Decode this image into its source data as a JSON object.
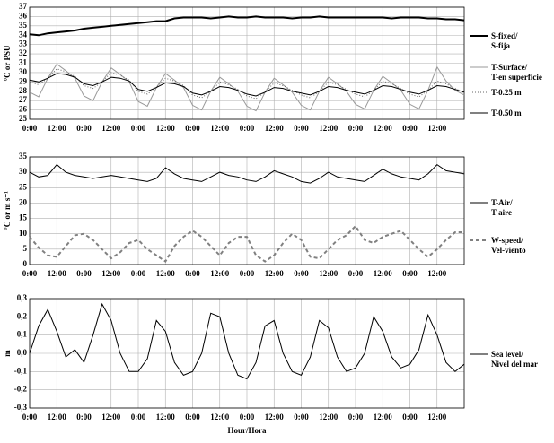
{
  "chart_data": [
    {
      "type": "line",
      "y_label": "°C or PSU",
      "grid": true,
      "x": [
        0,
        4,
        8,
        12,
        16,
        20,
        24,
        28,
        32,
        36,
        40,
        44,
        48,
        52,
        56,
        60,
        64,
        68,
        72,
        76,
        80,
        84,
        88,
        92,
        96,
        100,
        104,
        108,
        112,
        116,
        120,
        124,
        128,
        132,
        136,
        140,
        144,
        148,
        152,
        156,
        160,
        164,
        168,
        172,
        176,
        180,
        184,
        188,
        192
      ],
      "xlim": [
        0,
        192
      ],
      "xticks": [
        {
          "value": 0,
          "label": "0:00"
        },
        {
          "value": 12,
          "label": "12:00"
        },
        {
          "value": 24,
          "label": "0:00"
        },
        {
          "value": 36,
          "label": "12:00"
        },
        {
          "value": 48,
          "label": "0:00"
        },
        {
          "value": 60,
          "label": "12:00"
        },
        {
          "value": 72,
          "label": "0:00"
        },
        {
          "value": 84,
          "label": "12:00"
        },
        {
          "value": 96,
          "label": "0:00"
        },
        {
          "value": 108,
          "label": "12:00"
        },
        {
          "value": 120,
          "label": "0:00"
        },
        {
          "value": 132,
          "label": "12:00"
        },
        {
          "value": 144,
          "label": "0:00"
        },
        {
          "value": 156,
          "label": "12:00"
        },
        {
          "value": 168,
          "label": "0:00"
        },
        {
          "value": 180,
          "label": "12:00"
        }
      ],
      "ylim": [
        25,
        37
      ],
      "yticks": [
        25,
        26,
        27,
        28,
        29,
        30,
        31,
        32,
        33,
        34,
        35,
        36,
        37
      ],
      "series": [
        {
          "name": "S-fixed/\nS-fija",
          "color": "#000000",
          "width": 2,
          "style": "solid",
          "values": [
            34.1,
            34.0,
            34.2,
            34.3,
            34.4,
            34.5,
            34.7,
            34.8,
            34.9,
            35.0,
            35.1,
            35.2,
            35.3,
            35.4,
            35.5,
            35.5,
            35.8,
            35.9,
            35.9,
            35.9,
            35.8,
            35.9,
            36.0,
            35.9,
            35.9,
            36.0,
            35.9,
            35.9,
            35.9,
            35.8,
            35.9,
            35.9,
            36.0,
            35.9,
            35.9,
            35.9,
            35.9,
            35.9,
            35.9,
            35.9,
            35.8,
            35.9,
            35.9,
            35.9,
            35.8,
            35.8,
            35.7,
            35.7,
            35.6
          ]
        },
        {
          "name": "T-Surface/\nT-en superficie",
          "color": "#999999",
          "width": 1,
          "style": "solid",
          "values": [
            27.9,
            27.4,
            29.4,
            30.9,
            30.2,
            29.4,
            27.5,
            27.0,
            29.0,
            30.5,
            29.8,
            29.0,
            26.9,
            26.4,
            28.4,
            29.9,
            29.2,
            28.4,
            26.5,
            26.0,
            28.0,
            29.5,
            28.8,
            28.0,
            26.4,
            25.9,
            27.9,
            29.4,
            28.7,
            27.9,
            26.5,
            26.0,
            28.0,
            29.5,
            28.8,
            28.0,
            26.6,
            26.1,
            28.1,
            29.6,
            28.9,
            28.1,
            26.6,
            26.1,
            28.1,
            30.6,
            29.1,
            28.1,
            27.6
          ]
        },
        {
          "name": "T-0.25 m",
          "color": "#666666",
          "width": 1,
          "style": "dotted",
          "values": [
            29.0,
            28.7,
            29.4,
            30.4,
            30.1,
            29.6,
            28.6,
            28.3,
            29.0,
            30.0,
            29.7,
            29.2,
            28.0,
            27.7,
            28.4,
            29.4,
            29.1,
            28.6,
            27.6,
            27.3,
            28.0,
            29.0,
            28.7,
            28.2,
            27.5,
            27.2,
            27.9,
            28.9,
            28.6,
            28.1,
            27.6,
            27.3,
            28.0,
            29.0,
            28.7,
            28.2,
            27.7,
            27.4,
            28.1,
            29.1,
            28.8,
            28.3,
            27.7,
            27.4,
            28.1,
            29.1,
            28.8,
            28.3,
            27.8
          ]
        },
        {
          "name": "T-0.50 m",
          "color": "#000000",
          "width": 1,
          "style": "solid",
          "values": [
            29.2,
            29.0,
            29.4,
            29.9,
            29.8,
            29.5,
            28.8,
            28.6,
            29.0,
            29.5,
            29.4,
            29.1,
            28.2,
            28.0,
            28.4,
            28.9,
            28.8,
            28.5,
            27.8,
            27.6,
            28.0,
            28.5,
            28.4,
            28.1,
            27.7,
            27.5,
            27.9,
            28.4,
            28.3,
            28.0,
            27.8,
            27.6,
            28.0,
            28.5,
            28.4,
            28.1,
            27.9,
            27.7,
            28.1,
            28.6,
            28.5,
            28.2,
            27.9,
            27.7,
            28.1,
            28.6,
            28.5,
            28.2,
            27.9
          ]
        }
      ]
    },
    {
      "type": "line",
      "y_label": "°C or m s⁻¹",
      "grid": true,
      "x": [
        0,
        4,
        8,
        12,
        16,
        20,
        24,
        28,
        32,
        36,
        40,
        44,
        48,
        52,
        56,
        60,
        64,
        68,
        72,
        76,
        80,
        84,
        88,
        92,
        96,
        100,
        104,
        108,
        112,
        116,
        120,
        124,
        128,
        132,
        136,
        140,
        144,
        148,
        152,
        156,
        160,
        164,
        168,
        172,
        176,
        180,
        184,
        188,
        192
      ],
      "xlim": [
        0,
        192
      ],
      "xticks": [
        {
          "value": 0,
          "label": "0:00"
        },
        {
          "value": 12,
          "label": "12:00"
        },
        {
          "value": 24,
          "label": "0:00"
        },
        {
          "value": 36,
          "label": "12:00"
        },
        {
          "value": 48,
          "label": "0:00"
        },
        {
          "value": 60,
          "label": "12:00"
        },
        {
          "value": 72,
          "label": "0:00"
        },
        {
          "value": 84,
          "label": "12:00"
        },
        {
          "value": 96,
          "label": "0:00"
        },
        {
          "value": 108,
          "label": "12:00"
        },
        {
          "value": 120,
          "label": "0:00"
        },
        {
          "value": 132,
          "label": "12:00"
        },
        {
          "value": 144,
          "label": "0:00"
        },
        {
          "value": 156,
          "label": "12:00"
        },
        {
          "value": 168,
          "label": "0:00"
        },
        {
          "value": 180,
          "label": "12:00"
        }
      ],
      "ylim": [
        0,
        35
      ],
      "yticks": [
        0,
        5,
        10,
        15,
        20,
        25,
        30,
        35
      ],
      "series": [
        {
          "name": "T-Air/\nT-aire",
          "color": "#000000",
          "width": 1,
          "style": "solid",
          "values": [
            30.0,
            28.5,
            29.0,
            32.5,
            30.0,
            29.0,
            28.5,
            28.0,
            28.5,
            29.0,
            28.5,
            28.0,
            27.5,
            27.0,
            28.0,
            31.5,
            29.5,
            28.0,
            27.5,
            27.0,
            28.5,
            30.0,
            29.0,
            28.5,
            27.5,
            27.0,
            28.5,
            30.5,
            29.5,
            28.5,
            27.0,
            26.5,
            28.0,
            30.0,
            28.5,
            28.0,
            27.5,
            27.0,
            29.0,
            31.0,
            29.5,
            28.5,
            28.0,
            27.5,
            29.5,
            32.5,
            30.5,
            30.0,
            29.5
          ]
        },
        {
          "name": "W-speed/\nVel-viento",
          "color": "#808080",
          "width": 2,
          "style": "dashed",
          "values": [
            9.0,
            5.5,
            3.0,
            2.5,
            6.0,
            9.5,
            10.0,
            8.0,
            5.0,
            2.0,
            4.0,
            7.0,
            8.0,
            5.0,
            3.0,
            1.0,
            6.0,
            9.0,
            11.0,
            9.0,
            6.0,
            3.0,
            7.0,
            9.0,
            9.0,
            3.0,
            1.0,
            3.0,
            7.0,
            10.0,
            8.0,
            2.5,
            2.0,
            5.0,
            8.0,
            9.5,
            12.5,
            8.0,
            7.0,
            9.0,
            10.0,
            11.0,
            8.0,
            5.0,
            2.5,
            5.0,
            8.0,
            10.5,
            10.5
          ]
        }
      ]
    },
    {
      "type": "line",
      "y_label": "m",
      "x_label": "Hour/Hora",
      "grid": true,
      "x": [
        0,
        4,
        8,
        12,
        16,
        20,
        24,
        28,
        32,
        36,
        40,
        44,
        48,
        52,
        56,
        60,
        64,
        68,
        72,
        76,
        80,
        84,
        88,
        92,
        96,
        100,
        104,
        108,
        112,
        116,
        120,
        124,
        128,
        132,
        136,
        140,
        144,
        148,
        152,
        156,
        160,
        164,
        168,
        172,
        176,
        180,
        184,
        188,
        192
      ],
      "xlim": [
        0,
        192
      ],
      "xticks": [
        {
          "value": 0,
          "label": "0:00"
        },
        {
          "value": 12,
          "label": "12:00"
        },
        {
          "value": 24,
          "label": "0:00"
        },
        {
          "value": 36,
          "label": "12:00"
        },
        {
          "value": 48,
          "label": "0:00"
        },
        {
          "value": 60,
          "label": "12:00"
        },
        {
          "value": 72,
          "label": "0:00"
        },
        {
          "value": 84,
          "label": "12:00"
        },
        {
          "value": 96,
          "label": "0:00"
        },
        {
          "value": 108,
          "label": "12:00"
        },
        {
          "value": 120,
          "label": "0:00"
        },
        {
          "value": 132,
          "label": "12:00"
        },
        {
          "value": 144,
          "label": "0:00"
        },
        {
          "value": 156,
          "label": "12:00"
        },
        {
          "value": 168,
          "label": "0:00"
        },
        {
          "value": 180,
          "label": "12:00"
        }
      ],
      "ylim": [
        -0.3,
        0.3
      ],
      "yticks": [
        {
          "value": -0.3,
          "label": "-0,3"
        },
        {
          "value": -0.2,
          "label": "-0,2"
        },
        {
          "value": -0.1,
          "label": "-0,1"
        },
        {
          "value": 0,
          "label": "0,0"
        },
        {
          "value": 0.1,
          "label": "0,1"
        },
        {
          "value": 0.2,
          "label": "0,2"
        },
        {
          "value": 0.3,
          "label": "0,3"
        }
      ],
      "series": [
        {
          "name": "Sea level/\nNivel del mar",
          "color": "#000000",
          "width": 1,
          "style": "solid",
          "values": [
            0.0,
            0.15,
            0.24,
            0.12,
            -0.02,
            0.02,
            -0.05,
            0.1,
            0.27,
            0.18,
            0.0,
            -0.1,
            -0.1,
            -0.03,
            0.18,
            0.12,
            -0.05,
            -0.12,
            -0.1,
            0.0,
            0.22,
            0.2,
            0.0,
            -0.12,
            -0.14,
            -0.05,
            0.15,
            0.18,
            0.0,
            -0.1,
            -0.12,
            -0.02,
            0.18,
            0.14,
            -0.02,
            -0.1,
            -0.08,
            0.0,
            0.2,
            0.12,
            -0.02,
            -0.08,
            -0.06,
            0.02,
            0.21,
            0.1,
            -0.05,
            -0.1,
            -0.06
          ]
        }
      ]
    }
  ]
}
